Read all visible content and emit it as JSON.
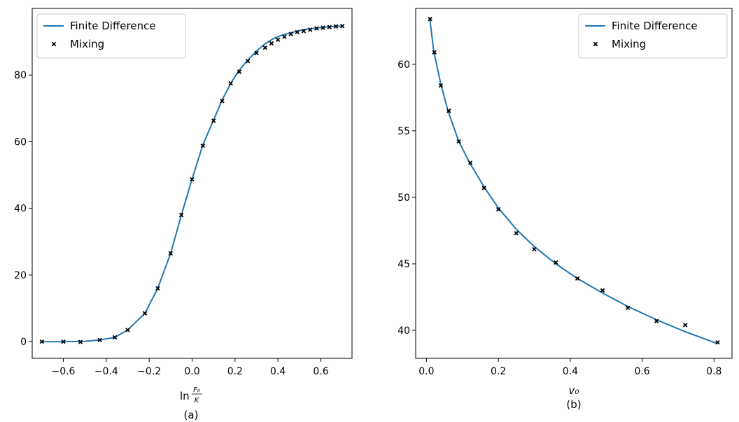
{
  "colors": {
    "line": "#1f77b4",
    "marker": "#000000",
    "axis": "#000000",
    "background": "#ffffff"
  },
  "chart_data": [
    {
      "type": "line",
      "panel_label": "(a)",
      "xlabel": "ln",
      "xlabel_frac_num": "F₀",
      "xlabel_frac_den": "K",
      "ylabel": "",
      "xlim": [
        -0.745,
        0.745
      ],
      "ylim": [
        -5,
        100
      ],
      "xticks": [
        -0.6,
        -0.4,
        -0.2,
        0.0,
        0.2,
        0.4,
        0.6
      ],
      "xtick_labels": [
        "−0.6",
        "−0.4",
        "−0.2",
        "0.0",
        "0.2",
        "0.4",
        "0.6"
      ],
      "yticks": [
        0,
        20,
        40,
        60,
        80
      ],
      "ytick_labels": [
        "0",
        "20",
        "40",
        "60",
        "80"
      ],
      "legend_position": "top-left",
      "series": [
        {
          "name": "Finite Difference",
          "kind": "line",
          "x": [
            -0.7,
            -0.6,
            -0.5,
            -0.43,
            -0.36,
            -0.3,
            -0.22,
            -0.16,
            -0.1,
            -0.05,
            0.0,
            0.05,
            0.1,
            0.14,
            0.18,
            0.22,
            0.26,
            0.3,
            0.34,
            0.38,
            0.42,
            0.46,
            0.5,
            0.54,
            0.58,
            0.62,
            0.66,
            0.7
          ],
          "y": [
            0.0,
            0.0,
            0.1,
            0.5,
            1.3,
            3.5,
            8.5,
            16.0,
            26.5,
            38.0,
            48.8,
            59.0,
            66.5,
            72.5,
            77.5,
            81.5,
            84.5,
            87.2,
            89.4,
            91.0,
            92.0,
            92.7,
            93.3,
            93.8,
            94.1,
            94.4,
            94.6,
            94.7
          ]
        },
        {
          "name": "Mixing",
          "kind": "scatter",
          "x": [
            -0.7,
            -0.6,
            -0.52,
            -0.43,
            -0.36,
            -0.3,
            -0.22,
            -0.16,
            -0.1,
            -0.05,
            0.0,
            0.05,
            0.1,
            0.14,
            0.18,
            0.22,
            0.26,
            0.3,
            0.34,
            0.37,
            0.4,
            0.43,
            0.46,
            0.49,
            0.52,
            0.55,
            0.58,
            0.61,
            0.64,
            0.67,
            0.7
          ],
          "y": [
            0.0,
            0.0,
            -0.1,
            0.5,
            1.3,
            3.5,
            8.5,
            16.0,
            26.5,
            38.0,
            48.7,
            58.8,
            66.3,
            72.2,
            77.5,
            81.0,
            84.2,
            86.6,
            88.2,
            89.5,
            90.6,
            91.5,
            92.3,
            92.9,
            93.2,
            93.6,
            94.0,
            94.2,
            94.4,
            94.6,
            94.7
          ]
        }
      ]
    },
    {
      "type": "line",
      "panel_label": "(b)",
      "xlabel": "v₀",
      "ylabel": "",
      "xlim": [
        -0.03,
        0.85
      ],
      "ylim": [
        37.9,
        64.2
      ],
      "xticks": [
        0.0,
        0.2,
        0.4,
        0.6,
        0.8
      ],
      "xtick_labels": [
        "0.0",
        "0.2",
        "0.4",
        "0.6",
        "0.8"
      ],
      "yticks": [
        40,
        45,
        50,
        55,
        60
      ],
      "ytick_labels": [
        "40",
        "45",
        "50",
        "55",
        "60"
      ],
      "legend_position": "top-right",
      "series": [
        {
          "name": "Finite Difference",
          "kind": "line",
          "x": [
            0.01,
            0.02,
            0.04,
            0.06,
            0.09,
            0.12,
            0.16,
            0.2,
            0.25,
            0.3,
            0.36,
            0.42,
            0.49,
            0.56,
            0.64,
            0.72,
            0.81
          ],
          "y": [
            63.3,
            61.0,
            58.5,
            56.5,
            54.2,
            52.6,
            50.8,
            49.2,
            47.6,
            46.3,
            45.0,
            43.9,
            42.8,
            41.8,
            40.8,
            39.9,
            39.0
          ]
        },
        {
          "name": "Mixing",
          "kind": "scatter",
          "x": [
            0.01,
            0.022,
            0.04,
            0.062,
            0.09,
            0.122,
            0.16,
            0.2,
            0.25,
            0.3,
            0.36,
            0.42,
            0.49,
            0.56,
            0.64,
            0.72,
            0.81
          ],
          "y": [
            63.4,
            60.9,
            58.4,
            56.5,
            54.2,
            52.6,
            50.7,
            49.1,
            47.3,
            46.1,
            45.1,
            43.9,
            43.0,
            41.7,
            40.7,
            40.4,
            39.1
          ]
        }
      ]
    }
  ]
}
